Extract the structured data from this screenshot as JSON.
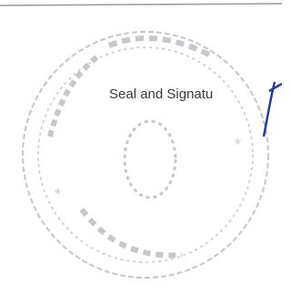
{
  "document": {
    "label": "Seal and Signatu"
  }
}
